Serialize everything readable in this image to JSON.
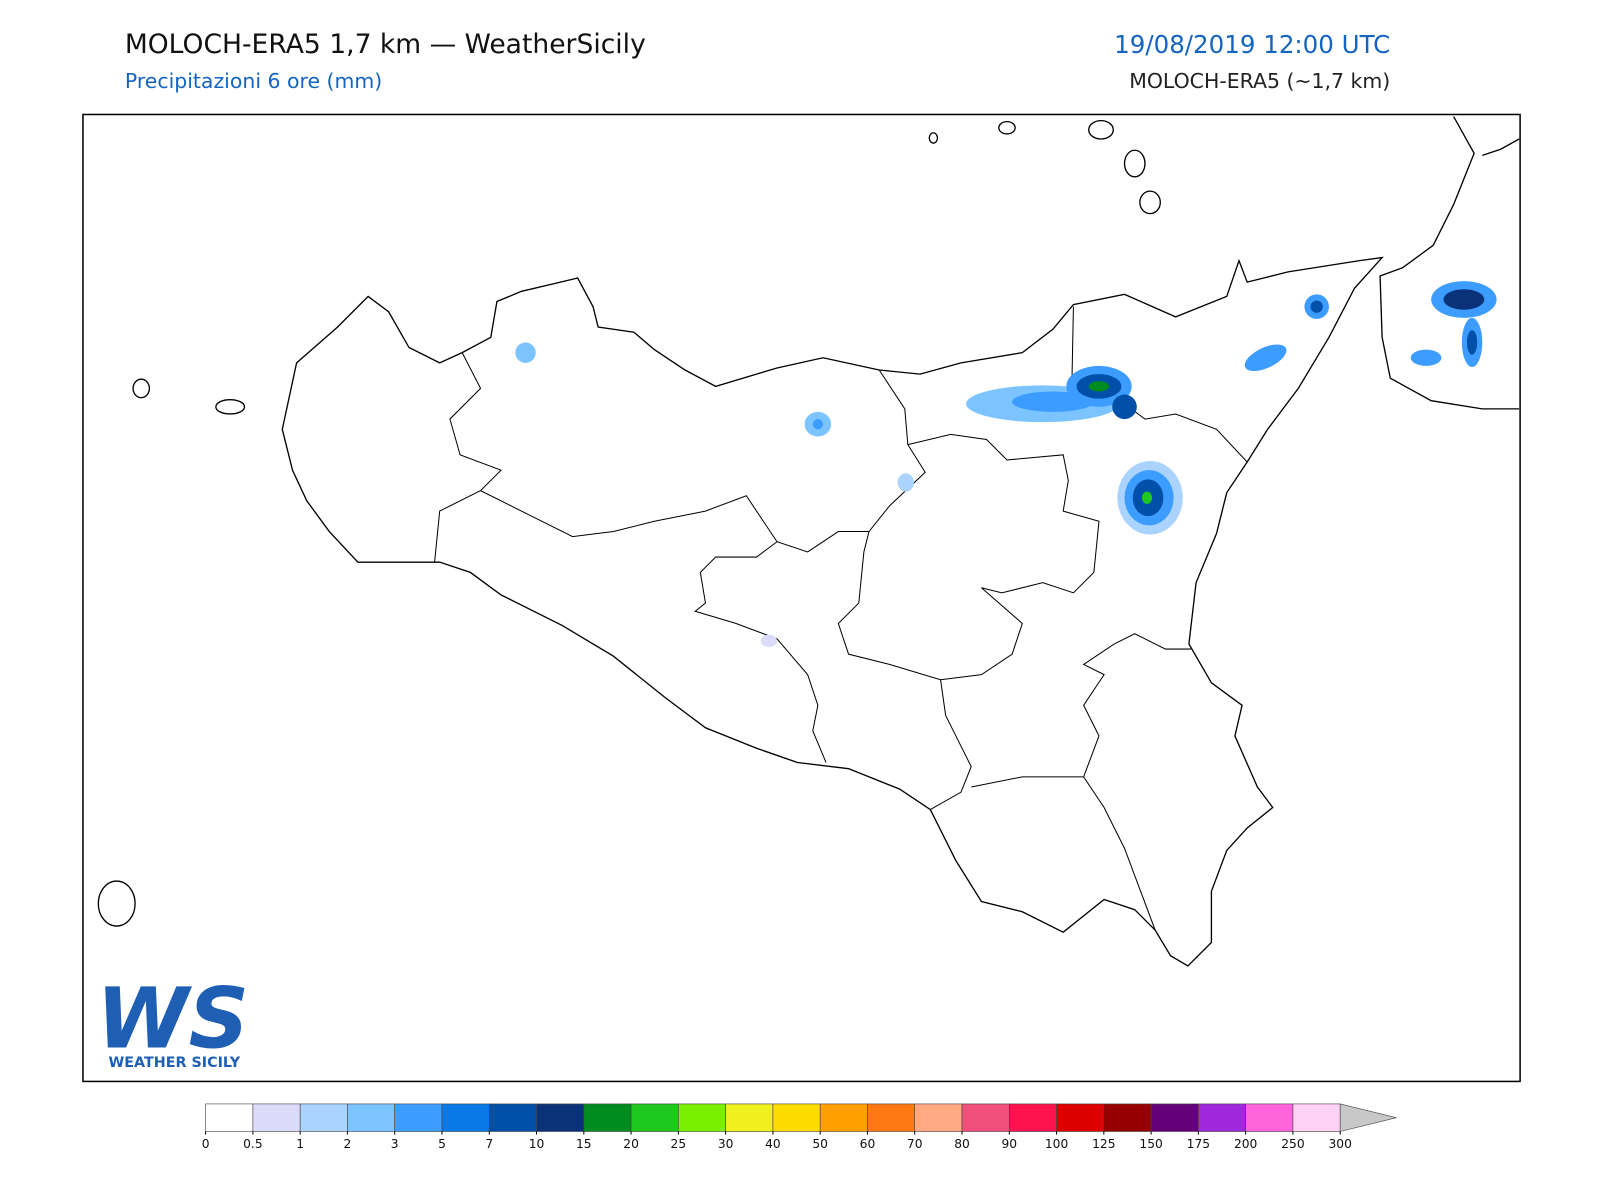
{
  "header": {
    "title": "MOLOCH-ERA5 1,7 km — WeatherSicily",
    "subtitle": "Precipitazioni 6 ore (mm)",
    "datetime": "19/08/2019 12:00 UTC",
    "model": "MOLOCH-ERA5 (~1,7 km)"
  },
  "logo": {
    "letters": "WS",
    "name": "WEATHER SICILY"
  },
  "colorbar": {
    "ticks": [
      0,
      0.5,
      1,
      2,
      3,
      5,
      7,
      10,
      15,
      20,
      25,
      30,
      40,
      50,
      60,
      70,
      80,
      90,
      100,
      125,
      150,
      175,
      200,
      250,
      300
    ],
    "colors": [
      "#ffffff",
      "#dcdcfa",
      "#aad4ff",
      "#7cc4ff",
      "#3c9cff",
      "#0a78e6",
      "#0050aa",
      "#0a3278",
      "#008c1e",
      "#1ec81e",
      "#78f000",
      "#f0f01e",
      "#ffdc00",
      "#ffa000",
      "#ff7814",
      "#ffaa82",
      "#f0507a",
      "#ff1450",
      "#dc0000",
      "#960000",
      "#640078",
      "#a028dc",
      "#ff64dc",
      "#ffd2f5"
    ],
    "extend_color": "#c8c8c8"
  }
}
